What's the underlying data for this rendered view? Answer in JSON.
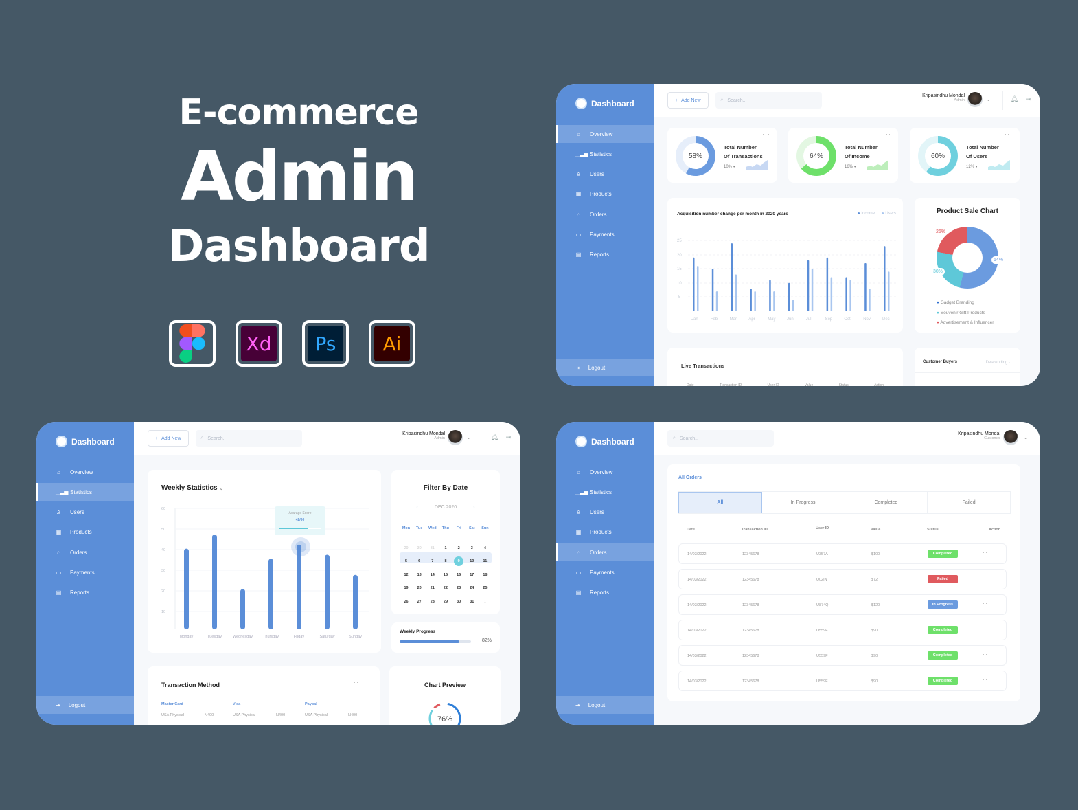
{
  "hero": {
    "line1": "E-commerce",
    "line2": "Admin",
    "line3": "Dashboard"
  },
  "tools": [
    {
      "name": "figma",
      "label": ""
    },
    {
      "name": "xd",
      "label": "Xd",
      "color": "#ff61f6",
      "bg": "#470137"
    },
    {
      "name": "ps",
      "label": "Ps",
      "color": "#31a8ff",
      "bg": "#001e36"
    },
    {
      "name": "ai",
      "label": "Ai",
      "color": "#ff9a00",
      "bg": "#330000"
    }
  ],
  "app": {
    "brand": "Dashboard",
    "add_new": "Add New",
    "search_placeholder": "Search..",
    "user_name": "Kripasindhu Mondal",
    "role_admin": "Admin",
    "role_customer": "Customer",
    "logout": "Logout",
    "nav": [
      "Overview",
      "Statistics",
      "Users",
      "Products",
      "Orders",
      "Payments",
      "Reports"
    ]
  },
  "overview": {
    "stats": [
      {
        "pct": "58%",
        "title1": "Total Number",
        "title2": "Of Transactions",
        "change": "10% ▾",
        "color": "#6b9bdf"
      },
      {
        "pct": "64%",
        "title1": "Total Number",
        "title2": "Of Income",
        "change": "16% ▾",
        "color": "#6ee06a"
      },
      {
        "pct": "60%",
        "title1": "Total Number",
        "title2": "Of Users",
        "change": "12% ▾",
        "color": "#6fd0de"
      }
    ],
    "acq_title": "Acquisition number change per month in 2020 years",
    "legend": [
      "Income",
      "Users"
    ],
    "product_sale_title": "Product Sale Chart",
    "product_legend": [
      "Gadget Branding",
      "Souvenir Gift Products",
      "Advertisement & Influencer"
    ],
    "live_title": "Live Transactions",
    "live_headers": [
      "Date",
      "Transaction ID",
      "User ID",
      "Value",
      "Status",
      "Action"
    ],
    "buyers_title": "Customer Buyers",
    "buyers_sort": "Descending"
  },
  "statistics": {
    "weekly_title": "Weekly Statistics",
    "tooltip_label": "Avarage Score",
    "tooltip_value": "42/60",
    "filter_title": "Filter By Date",
    "month": "DEC 2020",
    "weekdays": [
      "Mon",
      "Tue",
      "Wed",
      "Thu",
      "Fri",
      "Sat",
      "Sun"
    ],
    "calendar": [
      [
        "29",
        "30",
        "31",
        "1",
        "2",
        "3",
        "4"
      ],
      [
        "5",
        "6",
        "7",
        "8",
        "9",
        "10",
        "11"
      ],
      [
        "12",
        "13",
        "14",
        "15",
        "16",
        "17",
        "18"
      ],
      [
        "19",
        "20",
        "21",
        "22",
        "23",
        "24",
        "25"
      ],
      [
        "26",
        "27",
        "28",
        "29",
        "30",
        "31",
        "1"
      ]
    ],
    "selected_day": "9",
    "progress_title": "Weekly Progress",
    "progress_value": "82%",
    "transaction_title": "Transaction Method",
    "methods": [
      {
        "name": "Master Card",
        "region": "USA Physical",
        "amount": "N400"
      },
      {
        "name": "Visa",
        "region": "USA Physical",
        "amount": "N400"
      },
      {
        "name": "Paypal",
        "region": "USA Physical",
        "amount": "N400"
      }
    ],
    "chart_preview_title": "Chart Preview",
    "chart_preview_value": "76%"
  },
  "orders": {
    "title": "All Orders",
    "tabs": [
      "All",
      "In Progress",
      "Completed",
      "Failed"
    ],
    "headers": [
      "Date",
      "Transaction ID",
      "User ID",
      "Value",
      "Status",
      "Action"
    ],
    "rows": [
      {
        "date": "14/03/2022",
        "tid": "12345678",
        "uid": "U357A",
        "value": "$100",
        "status": "Completed"
      },
      {
        "date": "14/03/2022",
        "tid": "12345678",
        "uid": "U02IN",
        "value": "$72",
        "status": "Failed"
      },
      {
        "date": "14/03/2022",
        "tid": "12345678",
        "uid": "U874Q",
        "value": "$120",
        "status": "In Progress"
      },
      {
        "date": "14/03/2022",
        "tid": "12345678",
        "uid": "U559F",
        "value": "$90",
        "status": "Completed"
      },
      {
        "date": "14/03/2022",
        "tid": "12345678",
        "uid": "U559F",
        "value": "$90",
        "status": "Completed"
      },
      {
        "date": "14/03/2022",
        "tid": "12345678",
        "uid": "U559F",
        "value": "$90",
        "status": "Completed"
      }
    ],
    "status_colors": {
      "Completed": "#6ee06a",
      "Failed": "#e05a5e",
      "In Progress": "#6b9bdf"
    }
  },
  "chart_data": [
    {
      "type": "bar",
      "title": "Acquisition number change per month in 2020 years",
      "categories": [
        "Jan",
        "Feb",
        "Mar",
        "Apr",
        "May",
        "Jun",
        "Jul",
        "Sep",
        "Oct",
        "Nov",
        "Dec"
      ],
      "series": [
        {
          "name": "Income",
          "values": [
            19,
            15,
            24,
            8,
            11,
            10,
            18,
            19,
            12,
            17,
            23
          ],
          "color": "#5b8ed8"
        },
        {
          "name": "Users",
          "values": [
            16,
            7,
            13,
            7,
            7,
            4,
            15,
            12,
            11,
            8,
            14
          ],
          "color": "#a9c6ef"
        }
      ],
      "yticks": [
        5,
        10,
        15,
        20,
        25
      ],
      "ylim": [
        0,
        25
      ]
    },
    {
      "type": "pie",
      "title": "Product Sale Chart",
      "labels": [
        "Gadget Branding",
        "Souvenir Gift Products",
        "Advertisement & Influencer"
      ],
      "values": [
        54,
        30,
        26
      ],
      "colors": [
        "#6b9bdf",
        "#5ec8d8",
        "#e05a5e"
      ]
    },
    {
      "type": "bar",
      "title": "Weekly Statistics",
      "categories": [
        "Monday",
        "Tuesday",
        "Wednesday",
        "Thursday",
        "Friday",
        "Saturday",
        "Sunday"
      ],
      "values": [
        40,
        47,
        20,
        35,
        42,
        37,
        27
      ],
      "yticks": [
        10,
        20,
        30,
        40,
        50,
        60
      ],
      "ylim": [
        0,
        60
      ]
    }
  ]
}
